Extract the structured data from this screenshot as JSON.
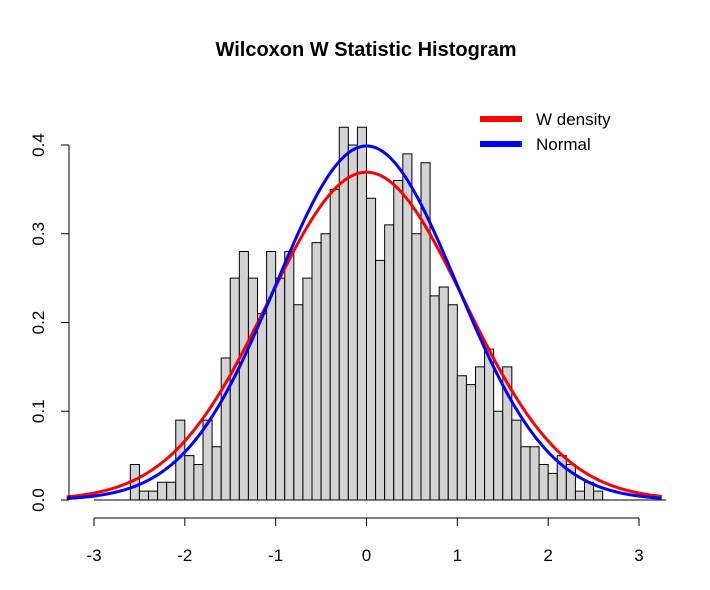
{
  "chart_data": {
    "type": "bar",
    "title": "Wilcoxon W Statistic Histogram",
    "xlabel": "",
    "ylabel": "",
    "xlim": [
      -3.3,
      3.25
    ],
    "ylim": [
      0,
      0.46
    ],
    "x_ticks": [
      -3,
      -2,
      -1,
      0,
      1,
      2,
      3
    ],
    "y_ticks": [
      0.0,
      0.1,
      0.2,
      0.3,
      0.4
    ],
    "bin_width": 0.1,
    "bins_start": [
      -3.0,
      -2.9,
      -2.8,
      -2.7,
      -2.6,
      -2.5,
      -2.4,
      -2.3,
      -2.2,
      -2.1,
      -2.0,
      -1.9,
      -1.8,
      -1.7,
      -1.6,
      -1.5,
      -1.4,
      -1.3,
      -1.2,
      -1.1,
      -1.0,
      -0.9,
      -0.8,
      -0.7,
      -0.6,
      -0.5,
      -0.4,
      -0.3,
      -0.2,
      -0.1,
      0.0,
      0.1,
      0.2,
      0.3,
      0.4,
      0.5,
      0.6,
      0.7,
      0.8,
      0.9,
      1.0,
      1.1,
      1.2,
      1.3,
      1.4,
      1.5,
      1.6,
      1.7,
      1.8,
      1.9,
      2.0,
      2.1,
      2.2,
      2.3,
      2.4,
      2.5,
      2.6,
      2.7,
      2.8,
      2.9,
      3.0,
      3.1,
      3.2
    ],
    "bin_density": [
      0.0,
      0.0,
      0.0,
      0.0,
      0.04,
      0.01,
      0.01,
      0.02,
      0.02,
      0.09,
      0.05,
      0.04,
      0.09,
      0.06,
      0.16,
      0.25,
      0.28,
      0.25,
      0.21,
      0.28,
      0.25,
      0.28,
      0.22,
      0.25,
      0.29,
      0.3,
      0.35,
      0.42,
      0.4,
      0.42,
      0.34,
      0.27,
      0.31,
      0.36,
      0.39,
      0.3,
      0.38,
      0.23,
      0.24,
      0.22,
      0.14,
      0.13,
      0.15,
      0.17,
      0.1,
      0.15,
      0.09,
      0.06,
      0.06,
      0.04,
      0.03,
      0.05,
      0.04,
      0.01,
      0.02,
      0.01,
      0.0,
      0.0,
      0.0,
      0.0,
      0.0,
      0.0,
      0.0
    ],
    "series": [
      {
        "name": "W density",
        "color": "#ff0000",
        "curve": "normal",
        "sd": 1.08
      },
      {
        "name": "Normal",
        "color": "#0000ff",
        "curve": "normal",
        "sd": 1.0
      }
    ],
    "bar_fill": "#d3d3d3",
    "bar_stroke": "#000000",
    "legend_position": "top-right",
    "grid": false
  }
}
